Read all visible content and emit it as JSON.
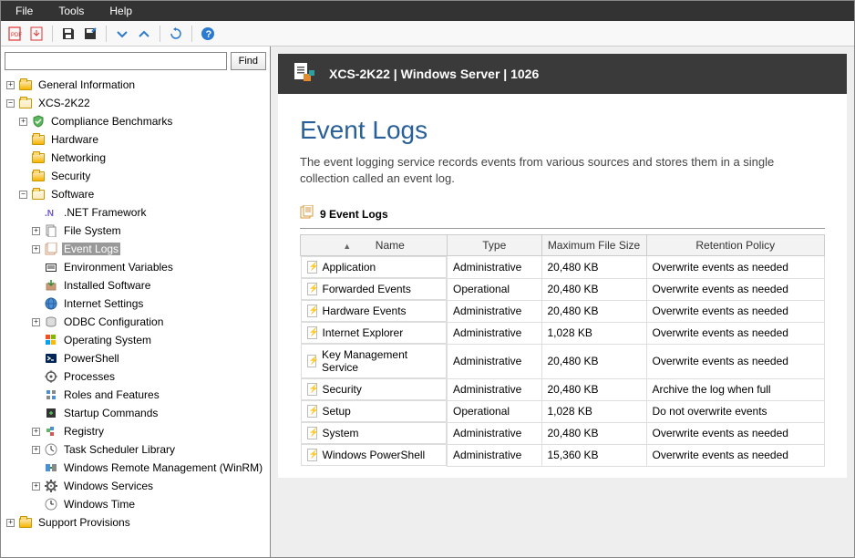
{
  "menu": {
    "items": [
      "File",
      "Tools",
      "Help"
    ]
  },
  "search": {
    "placeholder": "",
    "button": "Find"
  },
  "tree": {
    "nodes": [
      {
        "level": 0,
        "expander": "+",
        "icon": "folder",
        "label": "General Information"
      },
      {
        "level": 0,
        "expander": "−",
        "icon": "folder-open",
        "label": "XCS-2K22"
      },
      {
        "level": 1,
        "expander": "+",
        "icon": "shield-green",
        "label": "Compliance Benchmarks"
      },
      {
        "level": 1,
        "expander": " ",
        "icon": "folder",
        "label": "Hardware"
      },
      {
        "level": 1,
        "expander": " ",
        "icon": "folder",
        "label": "Networking"
      },
      {
        "level": 1,
        "expander": " ",
        "icon": "folder",
        "label": "Security"
      },
      {
        "level": 1,
        "expander": "−",
        "icon": "folder-open",
        "label": "Software"
      },
      {
        "level": 2,
        "expander": " ",
        "icon": "net",
        "label": ".NET Framework"
      },
      {
        "level": 2,
        "expander": "+",
        "icon": "filesys",
        "label": "File System"
      },
      {
        "level": 2,
        "expander": "+",
        "icon": "eventlog",
        "label": "Event Logs",
        "selected": true
      },
      {
        "level": 2,
        "expander": " ",
        "icon": "env",
        "label": "Environment Variables"
      },
      {
        "level": 2,
        "expander": " ",
        "icon": "installed",
        "label": "Installed Software"
      },
      {
        "level": 2,
        "expander": " ",
        "icon": "globe",
        "label": "Internet Settings"
      },
      {
        "level": 2,
        "expander": "+",
        "icon": "odbc",
        "label": "ODBC Configuration"
      },
      {
        "level": 2,
        "expander": " ",
        "icon": "os-flag",
        "label": "Operating System"
      },
      {
        "level": 2,
        "expander": " ",
        "icon": "powershell",
        "label": "PowerShell"
      },
      {
        "level": 2,
        "expander": " ",
        "icon": "processes",
        "label": "Processes"
      },
      {
        "level": 2,
        "expander": " ",
        "icon": "roles",
        "label": "Roles and Features"
      },
      {
        "level": 2,
        "expander": " ",
        "icon": "startup",
        "label": "Startup Commands"
      },
      {
        "level": 2,
        "expander": "+",
        "icon": "registry",
        "label": "Registry"
      },
      {
        "level": 2,
        "expander": "+",
        "icon": "task",
        "label": "Task Scheduler Library"
      },
      {
        "level": 2,
        "expander": " ",
        "icon": "winrm",
        "label": "Windows Remote Management (WinRM)"
      },
      {
        "level": 2,
        "expander": "+",
        "icon": "services",
        "label": "Windows Services"
      },
      {
        "level": 2,
        "expander": " ",
        "icon": "clock",
        "label": "Windows Time"
      },
      {
        "level": 0,
        "expander": "+",
        "icon": "folder",
        "label": "Support Provisions"
      }
    ]
  },
  "banner": {
    "title": "XCS-2K22 | Windows Server | 1026"
  },
  "page": {
    "heading": "Event Logs",
    "description": "The event logging service records events from various sources and stores them in a single collection called an event log.",
    "section_title": "9 Event Logs",
    "columns": [
      "Name",
      "Type",
      "Maximum File Size",
      "Retention Policy"
    ],
    "rows": [
      {
        "name": "Application",
        "type": "Administrative",
        "size": "20,480 KB",
        "policy": "Overwrite events as needed"
      },
      {
        "name": "Forwarded Events",
        "type": "Operational",
        "size": "20,480 KB",
        "policy": "Overwrite events as needed"
      },
      {
        "name": "Hardware Events",
        "type": "Administrative",
        "size": "20,480 KB",
        "policy": "Overwrite events as needed"
      },
      {
        "name": "Internet Explorer",
        "type": "Administrative",
        "size": "1,028 KB",
        "policy": "Overwrite events as needed"
      },
      {
        "name": "Key Management Service",
        "type": "Administrative",
        "size": "20,480 KB",
        "policy": "Overwrite events as needed"
      },
      {
        "name": "Security",
        "type": "Administrative",
        "size": "20,480 KB",
        "policy": "Archive the log when full"
      },
      {
        "name": "Setup",
        "type": "Operational",
        "size": "1,028 KB",
        "policy": "Do not overwrite events"
      },
      {
        "name": "System",
        "type": "Administrative",
        "size": "20,480 KB",
        "policy": "Overwrite events as needed"
      },
      {
        "name": "Windows PowerShell",
        "type": "Administrative",
        "size": "15,360 KB",
        "policy": "Overwrite events as needed"
      }
    ]
  },
  "colors": {
    "accent": "#2a6099",
    "banner_bg": "#3a3a3a",
    "menubar_bg": "#333333",
    "logo_orange": "#e38b2c",
    "logo_teal": "#2da1a1"
  }
}
